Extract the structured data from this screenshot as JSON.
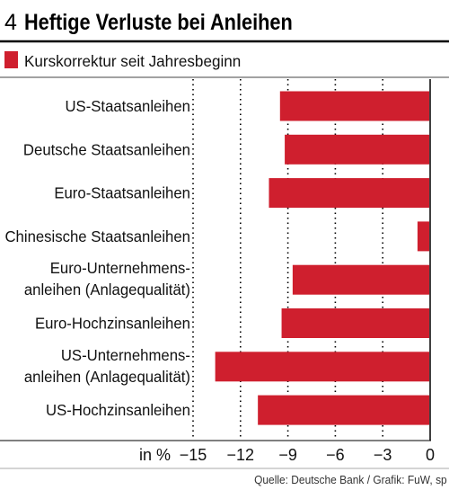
{
  "header": {
    "number": "4"
  },
  "chart_data": {
    "type": "bar",
    "orientation": "horizontal",
    "title": "Heftige Verluste bei Anleihen",
    "categories": [
      [
        "US-Staatsanleihen"
      ],
      [
        "Deutsche Staatsanleihen"
      ],
      [
        "Euro-Staatsanleihen"
      ],
      [
        "Chinesische Staatsanleihen"
      ],
      [
        "Euro-Unternehmens-",
        "anleihen (Anlagequalität)"
      ],
      [
        "Euro-Hochzinsanleihen"
      ],
      [
        "US-Unternehmens-",
        "anleihen (Anlagequalität)"
      ],
      [
        "US-Hochzinsanleihen"
      ]
    ],
    "series": [
      {
        "name": "Kurskorrektur seit Jahresbeginn",
        "values": [
          -9.5,
          -9.2,
          -10.2,
          -0.8,
          -8.7,
          -9.4,
          -13.6,
          -10.9
        ]
      }
    ],
    "color": "#cf1f2e",
    "unit_label": "in %",
    "xlim": [
      -15,
      0
    ],
    "xticks": [
      -15,
      -12,
      -9,
      -6,
      -3,
      0
    ],
    "xtick_labels": [
      "−15",
      "−12",
      "−9",
      "−6",
      "−3",
      "0"
    ],
    "grid": "dotted vertical",
    "legend_position": "top-left"
  },
  "footer": {
    "source": "Quelle: Deutsche Bank / Grafik: FuW, sp"
  }
}
